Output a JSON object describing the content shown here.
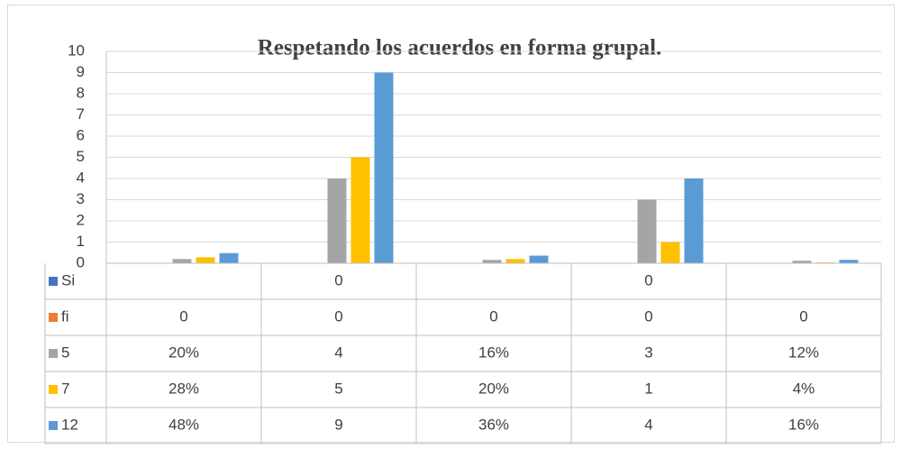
{
  "chart_data": {
    "type": "bar",
    "title": "Respetando los acuerdos en forma grupal.",
    "categories": [
      null,
      null,
      null,
      null,
      null
    ],
    "series": [
      {
        "name": "Si",
        "color": "#4472c4",
        "values": [
          null,
          0,
          null,
          0,
          null
        ]
      },
      {
        "name": "fi",
        "color": "#ed7d31",
        "values": [
          0,
          0,
          0,
          0,
          0
        ]
      },
      {
        "name": "5",
        "color": "#a5a5a5",
        "values": [
          0.2,
          4,
          0.16,
          3,
          0.12
        ],
        "value_labels": [
          "20%",
          null,
          "16%",
          null,
          "12%"
        ]
      },
      {
        "name": "7",
        "color": "#ffc000",
        "values": [
          0.28,
          5,
          0.2,
          1,
          0.04
        ],
        "value_labels": [
          "28%",
          null,
          "20%",
          null,
          "4%"
        ]
      },
      {
        "name": "12",
        "color": "#5b9bd5",
        "values": [
          0.48,
          9,
          0.36,
          4,
          0.16
        ],
        "value_labels": [
          "48%",
          null,
          "36%",
          null,
          "16%"
        ]
      }
    ],
    "ylim": [
      0,
      10
    ],
    "yticks": [
      0,
      1,
      2,
      3,
      4,
      5,
      6,
      7,
      8,
      9,
      10
    ],
    "grid": true,
    "data_table": true
  }
}
